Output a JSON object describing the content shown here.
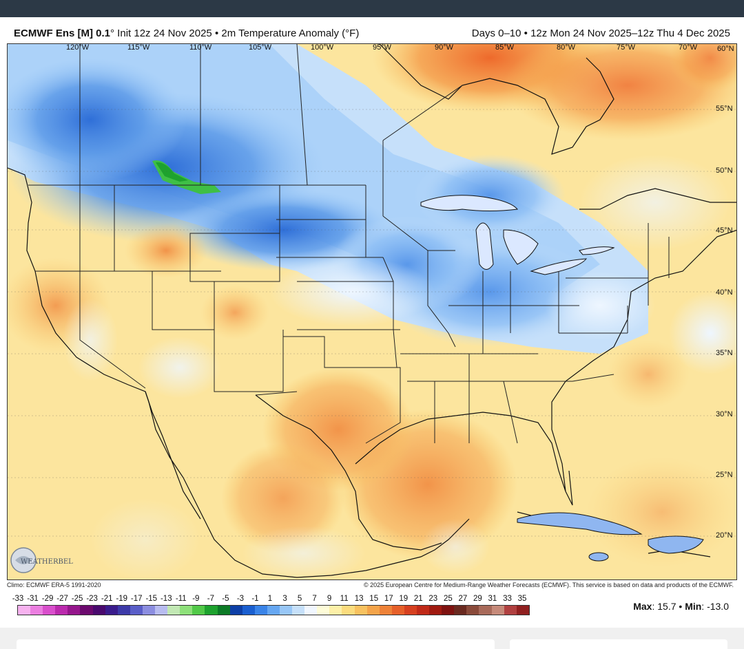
{
  "header": {
    "title_model": "ECMWF Ens [M] 0.1",
    "title_rest": "° Init 12z 24 Nov 2025 • 2m Temperature Anomaly (°F)",
    "title_right": "Days 0–10 • 12z Mon 24 Nov 2025–12z Thu 4 Dec 2025"
  },
  "map": {
    "lon_labels": [
      "120°W",
      "115°W",
      "110°W",
      "105°W",
      "100°W",
      "95°W",
      "90°W",
      "85°W",
      "80°W",
      "75°W",
      "70°W",
      "60°N"
    ],
    "lat_labels": [
      "55°N",
      "50°N",
      "45°N",
      "40°N",
      "35°N",
      "30°N",
      "25°N",
      "20°N"
    ],
    "regions": {
      "cold_core": "Northern Rockies / Northern Plains",
      "cold_secondary": "Great Lakes / Ohio Valley",
      "warm_core": "Hudson Bay region",
      "warm_secondary": "Texas / Gulf of Mexico / Southwest"
    }
  },
  "footer": {
    "climo": "Climo: ECMWF ERA-5 1991-2020",
    "copyright": "© 2025 European Centre for Medium-Range Weather Forecasts (ECMWF). This service is based on data and products of the ECMWF.",
    "logo_text": "WEATHERBELL",
    "max_label": "Max",
    "max_value": ": 15.7",
    "min_label": "Min",
    "min_value": ": -13.0"
  },
  "colorscale": {
    "labels": [
      "-33",
      "-31",
      "-29",
      "-27",
      "-25",
      "-23",
      "-21",
      "-19",
      "-17",
      "-15",
      "-13",
      "-11",
      "-9",
      "-7",
      "-5",
      "-3",
      "-1",
      "1",
      "3",
      "5",
      "7",
      "9",
      "11",
      "13",
      "15",
      "17",
      "19",
      "21",
      "23",
      "25",
      "27",
      "29",
      "31",
      "33",
      "35"
    ],
    "colors": [
      "#f7b2ef",
      "#eb7ee0",
      "#d94fcc",
      "#bb2aad",
      "#95168c",
      "#6c0a6e",
      "#4a0a6e",
      "#3a1c8c",
      "#3d3aa8",
      "#5a5ec8",
      "#8c8ee0",
      "#b8bcf0",
      "#c2e8b4",
      "#8ee07a",
      "#52c948",
      "#1ea22e",
      "#0c7a26",
      "#0d3fa6",
      "#1a5fd0",
      "#3a84e8",
      "#66a7f2",
      "#98c7f7",
      "#c6e0fa",
      "#f1f7ff",
      "#fefcd8",
      "#fdf0a8",
      "#fbdc7e",
      "#f8c260",
      "#f4a44a",
      "#ee8238",
      "#e6602a",
      "#d64020",
      "#c02a18",
      "#a01a10",
      "#7e1210",
      "#6a2a20",
      "#8a4a3a",
      "#a86a5a",
      "#c68a7a",
      "#b04040",
      "#902020"
    ]
  }
}
